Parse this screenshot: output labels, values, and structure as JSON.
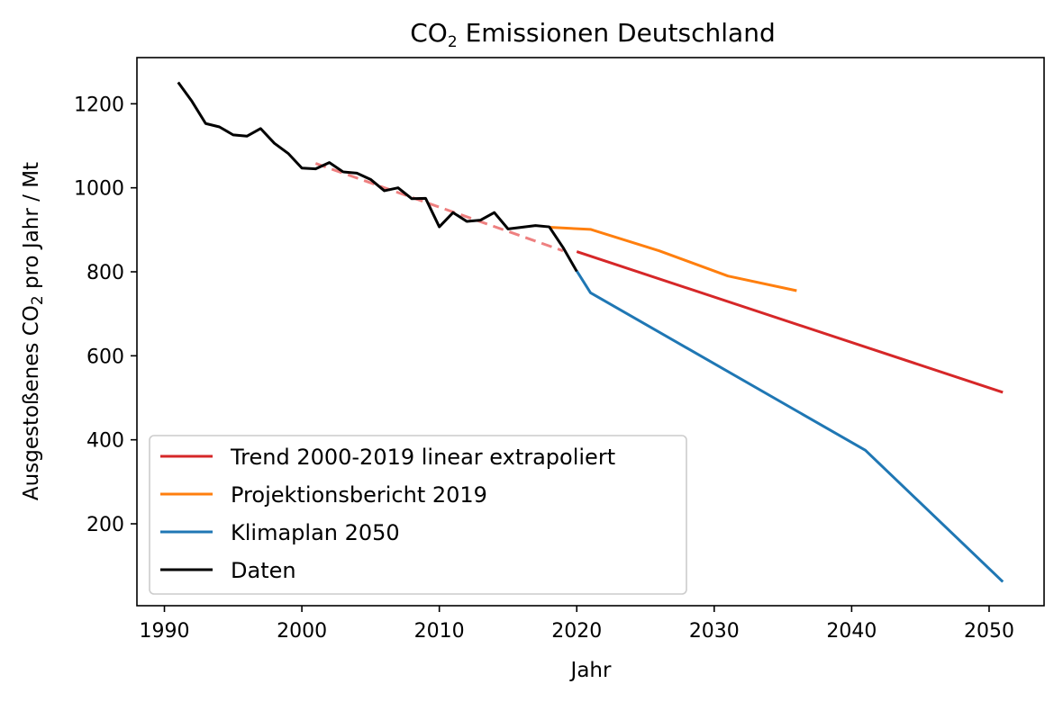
{
  "chart_data": {
    "type": "line",
    "title": {
      "pre": "CO",
      "sub": "2",
      "post": " Emissionen Deutschland"
    },
    "xlabel": "Jahr",
    "ylabel": {
      "pre": "Ausgestoßenes CO",
      "sub": "2",
      "post": " pro Jahr / Mt"
    },
    "xlim": [
      1988,
      2054
    ],
    "ylim": [
      5,
      1310
    ],
    "x_ticks": [
      1990,
      2000,
      2010,
      2020,
      2030,
      2040,
      2050
    ],
    "y_ticks": [
      200,
      400,
      600,
      800,
      1000,
      1200
    ],
    "grid": false,
    "legend_position": "lower-left",
    "series": [
      {
        "name": "Trend 2000-2019 linear extrapoliert",
        "color": "#d62728",
        "x": [
          2020,
          2051
        ],
        "y": [
          848,
          513
        ]
      },
      {
        "name": "Projektionsbericht 2019",
        "color": "#ff7f0e",
        "x": [
          2018,
          2021,
          2026,
          2031,
          2036
        ],
        "y": [
          906,
          901,
          850,
          790,
          755
        ]
      },
      {
        "name": "Klimaplan 2050",
        "color": "#1f77b4",
        "x": [
          2020,
          2021,
          2041,
          2051
        ],
        "y": [
          802,
          750,
          375,
          62
        ]
      },
      {
        "name": "Daten",
        "color": "#000000",
        "x": [
          1991,
          1992,
          1993,
          1994,
          1995,
          1996,
          1997,
          1998,
          1999,
          2000,
          2001,
          2002,
          2003,
          2004,
          2005,
          2006,
          2007,
          2008,
          2009,
          2010,
          2011,
          2012,
          2013,
          2014,
          2015,
          2016,
          2017,
          2018,
          2019,
          2020
        ],
        "y": [
          1251,
          1206,
          1153,
          1145,
          1126,
          1123,
          1141,
          1106,
          1082,
          1047,
          1045,
          1060,
          1038,
          1035,
          1020,
          993,
          1000,
          974,
          975,
          907,
          941,
          920,
          923,
          941,
          902,
          906,
          910,
          907,
          858,
          801
        ]
      }
    ],
    "trend_history": {
      "color": "#ee8080",
      "x": [
        2001,
        2019
      ],
      "y": [
        1058,
        850
      ]
    }
  }
}
